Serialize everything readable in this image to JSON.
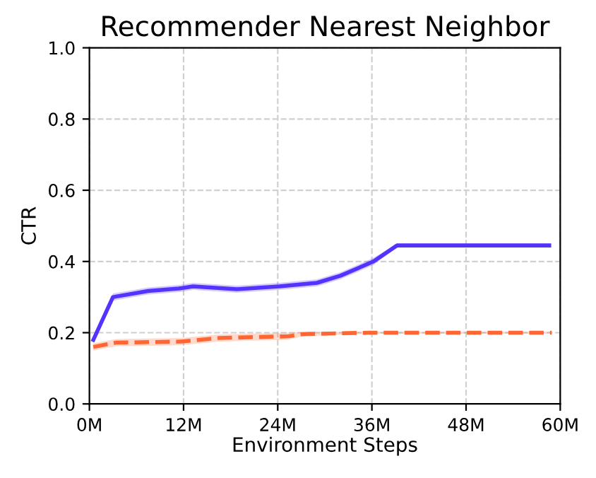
{
  "chart_data": {
    "type": "line",
    "title": "Recommender Nearest Neighbor",
    "xlabel": "Environment Steps",
    "ylabel": "CTR",
    "xlim": [
      0,
      60
    ],
    "xticks": [
      {
        "value": 0,
        "label": "0M"
      },
      {
        "value": 12,
        "label": "12M"
      },
      {
        "value": 24,
        "label": "24M"
      },
      {
        "value": 36,
        "label": "36M"
      },
      {
        "value": 48,
        "label": "48M"
      },
      {
        "value": 60,
        "label": "60M"
      }
    ],
    "ylim": [
      0,
      1.0
    ],
    "yticks": [
      {
        "value": 0,
        "label": "0.0"
      },
      {
        "value": 0.2,
        "label": "0.2"
      },
      {
        "value": 0.4,
        "label": "0.4"
      },
      {
        "value": 0.6,
        "label": "0.6"
      },
      {
        "value": 0.8,
        "label": "0.8"
      },
      {
        "value": 1.0,
        "label": "1.0"
      }
    ],
    "grid": true,
    "legend": false,
    "series": [
      {
        "color": "#5533ff",
        "line_style": "solid",
        "x": [
          0.5,
          3,
          7.5,
          11.4,
          13.2,
          18.8,
          24.2,
          29,
          32,
          36.2,
          39.2,
          58.6
        ],
        "values": [
          0.18,
          0.3,
          0.317,
          0.324,
          0.33,
          0.322,
          0.33,
          0.34,
          0.36,
          0.4,
          0.445,
          0.445
        ],
        "lower": [
          0.17,
          0.29,
          0.307,
          0.314,
          0.32,
          0.312,
          0.32,
          0.33,
          0.35,
          0.39,
          0.44,
          0.44
        ],
        "upper": [
          0.19,
          0.31,
          0.327,
          0.334,
          0.34,
          0.332,
          0.34,
          0.35,
          0.37,
          0.41,
          0.45,
          0.45
        ]
      },
      {
        "color": "#ff6633",
        "line_style": "dashed",
        "x": [
          0.5,
          3.4,
          11.7,
          16.5,
          25.4,
          27.2,
          35.6,
          58.9
        ],
        "values": [
          0.16,
          0.172,
          0.175,
          0.185,
          0.19,
          0.196,
          0.2,
          0.2
        ],
        "lower": [
          0.15,
          0.162,
          0.165,
          0.175,
          0.18,
          0.19,
          0.197,
          0.197
        ],
        "upper": [
          0.17,
          0.182,
          0.185,
          0.195,
          0.2,
          0.202,
          0.203,
          0.203
        ]
      }
    ]
  }
}
